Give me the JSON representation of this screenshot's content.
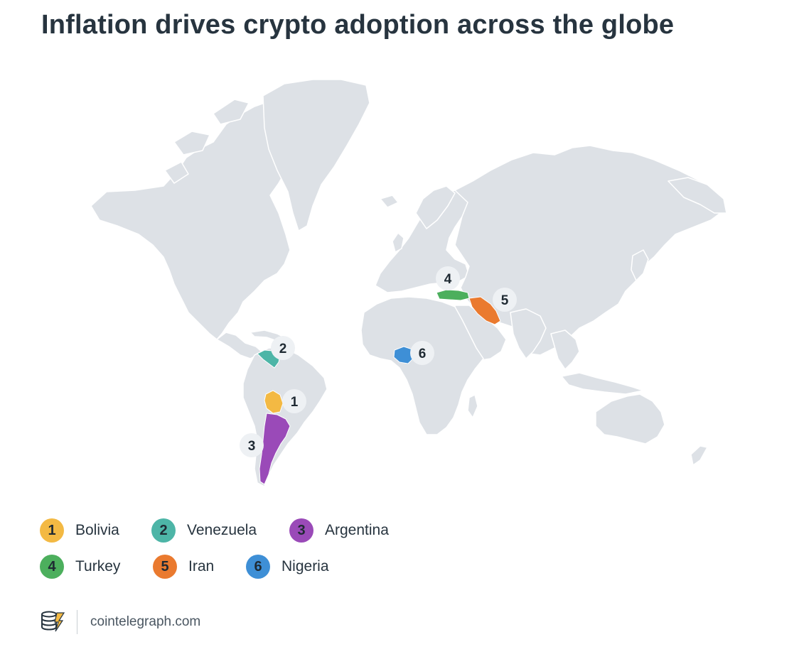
{
  "title": "Inflation drives crypto adoption across the globe",
  "colors": {
    "land": "#dde1e6",
    "land_border": "#ffffff",
    "bolivia": "#f3b943",
    "venezuela": "#4db5a7",
    "argentina": "#9a4ab8",
    "turkey": "#4caf5d",
    "iran": "#ea7a2f",
    "nigeria": "#3e8fd6",
    "marker_bg": "#eef1f4",
    "marker_text": "#1f2a33"
  },
  "markers": [
    {
      "number": "1",
      "country": "Bolivia"
    },
    {
      "number": "2",
      "country": "Venezuela"
    },
    {
      "number": "3",
      "country": "Argentina"
    },
    {
      "number": "4",
      "country": "Turkey"
    },
    {
      "number": "5",
      "country": "Iran"
    },
    {
      "number": "6",
      "country": "Nigeria"
    }
  ],
  "legend": [
    {
      "number": "1",
      "label": "Bolivia",
      "color": "#f3b943"
    },
    {
      "number": "2",
      "label": "Venezuela",
      "color": "#4db5a7"
    },
    {
      "number": "3",
      "label": "Argentina",
      "color": "#9a4ab8"
    },
    {
      "number": "4",
      "label": "Turkey",
      "color": "#4caf5d"
    },
    {
      "number": "5",
      "label": "Iran",
      "color": "#ea7a2f"
    },
    {
      "number": "6",
      "label": "Nigeria",
      "color": "#3e8fd6"
    }
  ],
  "footer": {
    "logo_icon": "cointelegraph-logo-icon",
    "source": "cointelegraph.com"
  }
}
